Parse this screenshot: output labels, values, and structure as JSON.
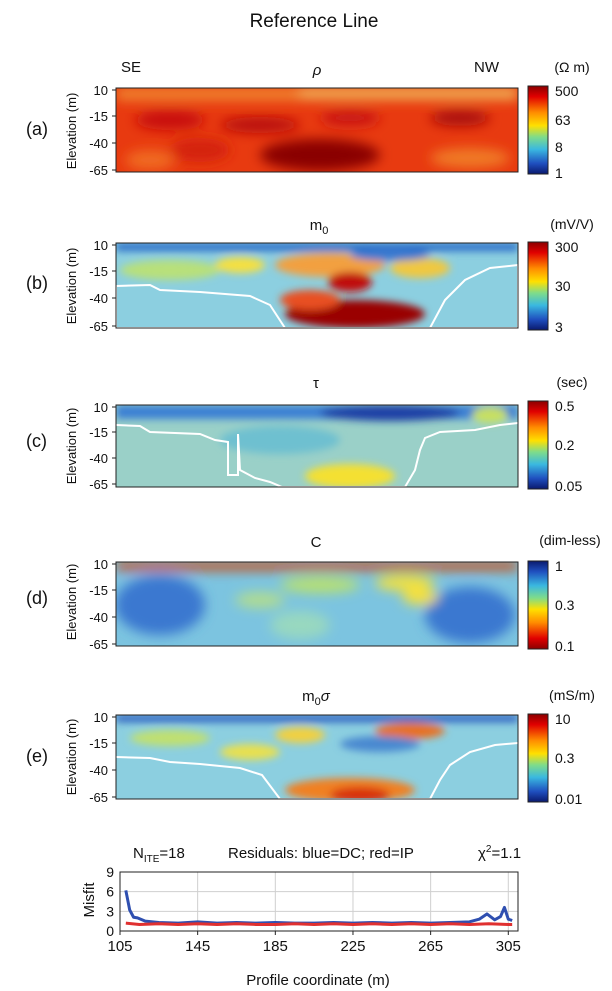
{
  "figure": {
    "title": "Reference Line",
    "ylabel": "Elevation (m)",
    "direction_left": "SE",
    "direction_right": "NW",
    "yticks": [
      "10",
      "-15",
      "-40",
      "-65"
    ]
  },
  "chart_data": [
    {
      "type": "heatmap",
      "panel": "(a)",
      "title": "ρ",
      "colorbar_unit": "(Ω m)",
      "colorbar_ticks": [
        "500",
        "63",
        "8",
        "1"
      ],
      "colorbar_order": "red-top",
      "ylim": [
        -65,
        10
      ],
      "x_range": [
        105,
        310
      ],
      "has_boundary": false
    },
    {
      "type": "heatmap",
      "panel": "(b)",
      "title": "m0",
      "colorbar_unit": "(mV/V)",
      "colorbar_ticks": [
        "300",
        "30",
        "3"
      ],
      "colorbar_order": "red-top",
      "ylim": [
        -65,
        10
      ],
      "x_range": [
        105,
        310
      ],
      "has_boundary": true
    },
    {
      "type": "heatmap",
      "panel": "(c)",
      "title": "τ",
      "colorbar_unit": "(sec)",
      "colorbar_ticks": [
        "0.5",
        "0.2",
        "0.05"
      ],
      "colorbar_order": "red-top",
      "ylim": [
        -65,
        10
      ],
      "x_range": [
        105,
        310
      ],
      "has_boundary": true
    },
    {
      "type": "heatmap",
      "panel": "(d)",
      "title": "C",
      "colorbar_unit": "(dim-less)",
      "colorbar_ticks": [
        "1",
        "0.3",
        "0.1"
      ],
      "colorbar_order": "blue-top",
      "ylim": [
        -65,
        10
      ],
      "x_range": [
        105,
        310
      ],
      "has_boundary": false
    },
    {
      "type": "heatmap",
      "panel": "(e)",
      "title": "m0σ",
      "colorbar_unit": "(mS/m)",
      "colorbar_ticks": [
        "10",
        "0.3",
        "0.01"
      ],
      "colorbar_order": "red-top",
      "ylim": [
        -65,
        10
      ],
      "x_range": [
        105,
        310
      ],
      "has_boundary": true
    },
    {
      "type": "line",
      "title_niter": "N",
      "title_niter_sub": "ITE",
      "title_niter_val": "=18",
      "title_residuals": "Residuals: blue=DC; red=IP",
      "title_chi": "χ",
      "title_chi_sup": "2",
      "title_chi_val": "=1.1",
      "ylabel": "Misfit",
      "xlabel": "Profile coordinate (m)",
      "xlim": [
        105,
        310
      ],
      "ylim": [
        0,
        9
      ],
      "xticks": [
        105,
        145,
        185,
        225,
        265,
        305
      ],
      "yticks": [
        0,
        3,
        6,
        9
      ],
      "grid": true,
      "series": [
        {
          "name": "DC",
          "color": "#2f4fb0",
          "x": [
            108,
            110,
            112,
            114,
            118,
            125,
            135,
            145,
            155,
            165,
            175,
            185,
            195,
            205,
            215,
            225,
            235,
            245,
            255,
            265,
            275,
            285,
            290,
            294,
            298,
            301,
            303,
            305,
            307
          ],
          "y": [
            6.2,
            3.2,
            2.1,
            2.0,
            1.5,
            1.3,
            1.2,
            1.4,
            1.2,
            1.3,
            1.2,
            1.3,
            1.2,
            1.2,
            1.3,
            1.2,
            1.3,
            1.2,
            1.3,
            1.2,
            1.3,
            1.4,
            1.8,
            2.6,
            1.7,
            2.2,
            3.6,
            1.8,
            1.6
          ]
        },
        {
          "name": "IP",
          "color": "#e03030",
          "x": [
            108,
            115,
            125,
            135,
            145,
            155,
            165,
            175,
            185,
            195,
            205,
            215,
            225,
            235,
            245,
            255,
            265,
            275,
            285,
            295,
            305,
            307
          ],
          "y": [
            1.2,
            1.0,
            1.1,
            1.0,
            1.1,
            1.0,
            1.1,
            1.0,
            1.0,
            1.1,
            1.0,
            1.1,
            1.0,
            1.1,
            1.0,
            1.1,
            1.0,
            1.1,
            1.0,
            1.1,
            1.0,
            1.0
          ]
        }
      ]
    }
  ]
}
